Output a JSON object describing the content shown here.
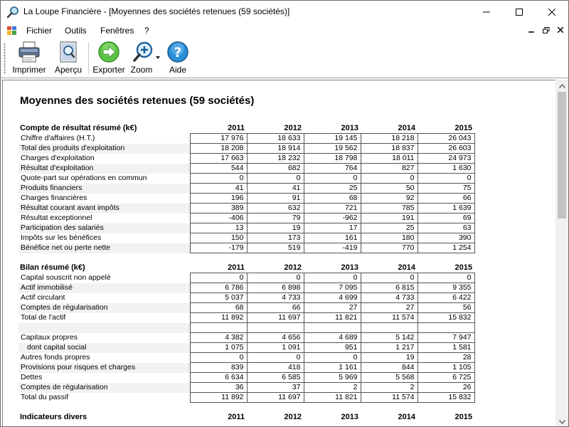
{
  "window": {
    "title": "La Loupe Financière - [Moyennes des sociétés retenues (59 sociétés)]"
  },
  "menu": {
    "items": [
      "Fichier",
      "Outils",
      "Fenêtres",
      "?"
    ]
  },
  "toolbar": {
    "print": "Imprimer",
    "preview": "Aperçu",
    "export": "Exporter",
    "zoom": "Zoom",
    "help": "Aide"
  },
  "report": {
    "title": "Moyennes des sociétés retenues (59 sociétés)",
    "years": [
      "2011",
      "2012",
      "2013",
      "2014",
      "2015"
    ],
    "income": {
      "heading": "Compte de résultat résumé (k€)",
      "rows": [
        {
          "label": "Chiffre d'affaires (H.T.)",
          "values": [
            "17 976",
            "18 633",
            "19 145",
            "18 218",
            "26 043"
          ]
        },
        {
          "label": "Total des produits d'exploitation",
          "values": [
            "18 208",
            "18 914",
            "19 562",
            "18 837",
            "26 603"
          ]
        },
        {
          "label": "Charges d'exploitation",
          "values": [
            "17 663",
            "18 232",
            "18 798",
            "18 011",
            "24 973"
          ]
        },
        {
          "label": "Résultat d'exploitation",
          "values": [
            "544",
            "682",
            "764",
            "827",
            "1 630"
          ]
        },
        {
          "label": "Quote-part sur opérations en commun",
          "values": [
            "0",
            "0",
            "0",
            "0",
            "0"
          ]
        },
        {
          "label": "Produits financiers",
          "values": [
            "41",
            "41",
            "25",
            "50",
            "75"
          ]
        },
        {
          "label": "Charges financières",
          "values": [
            "196",
            "91",
            "68",
            "92",
            "66"
          ]
        },
        {
          "label": "Résultat courant avant impôts",
          "values": [
            "389",
            "632",
            "721",
            "785",
            "1 639"
          ]
        },
        {
          "label": "Résultat exceptionnel",
          "values": [
            "-406",
            "79",
            "-962",
            "191",
            "69"
          ]
        },
        {
          "label": "Participation des salariés",
          "values": [
            "13",
            "19",
            "17",
            "25",
            "63"
          ]
        },
        {
          "label": "Impôts sur les bénéfices",
          "values": [
            "150",
            "173",
            "161",
            "180",
            "390"
          ]
        },
        {
          "label": "Bénéfice net ou perte nette",
          "values": [
            "-179",
            "519",
            "-419",
            "770",
            "1 254"
          ]
        }
      ]
    },
    "balance": {
      "heading": "Bilan résumé (k€)",
      "rows": [
        {
          "label": "Capital souscrit non appelé",
          "values": [
            "0",
            "0",
            "0",
            "0",
            "0"
          ]
        },
        {
          "label": "Actif immobilisé",
          "values": [
            "6 786",
            "6 898",
            "7 095",
            "6 815",
            "9 355"
          ]
        },
        {
          "label": "Actif circulant",
          "values": [
            "5 037",
            "4 733",
            "4 699",
            "4 733",
            "6 422"
          ]
        },
        {
          "label": "Comptes de régularisation",
          "values": [
            "68",
            "66",
            "27",
            "27",
            "56"
          ]
        },
        {
          "label": "Total de l'actif",
          "values": [
            "11 892",
            "11 697",
            "11 821",
            "11 574",
            "15 832"
          ]
        },
        {
          "label": "",
          "values": [
            "",
            "",
            "",
            "",
            ""
          ]
        },
        {
          "label": "Capitaux propres",
          "values": [
            "4 382",
            "4 656",
            "4 689",
            "5 142",
            "7 947"
          ]
        },
        {
          "label": "   dont capital social",
          "values": [
            "1 075",
            "1 091",
            "951",
            "1 217",
            "1 581"
          ]
        },
        {
          "label": "Autres fonds propres",
          "values": [
            "0",
            "0",
            "0",
            "19",
            "28"
          ]
        },
        {
          "label": "Provisions pour risques et charges",
          "values": [
            "839",
            "418",
            "1 161",
            "844",
            "1 105"
          ]
        },
        {
          "label": "Dettes",
          "values": [
            "6 634",
            "6 585",
            "5 969",
            "5 568",
            "6 725"
          ]
        },
        {
          "label": "Comptes de régularisation",
          "values": [
            "36",
            "37",
            "2",
            "2",
            "26"
          ]
        },
        {
          "label": "Total du passif",
          "values": [
            "11 892",
            "11 697",
            "11 821",
            "11 574",
            "15 832"
          ]
        }
      ]
    },
    "misc": {
      "heading": "Indicateurs divers"
    }
  }
}
